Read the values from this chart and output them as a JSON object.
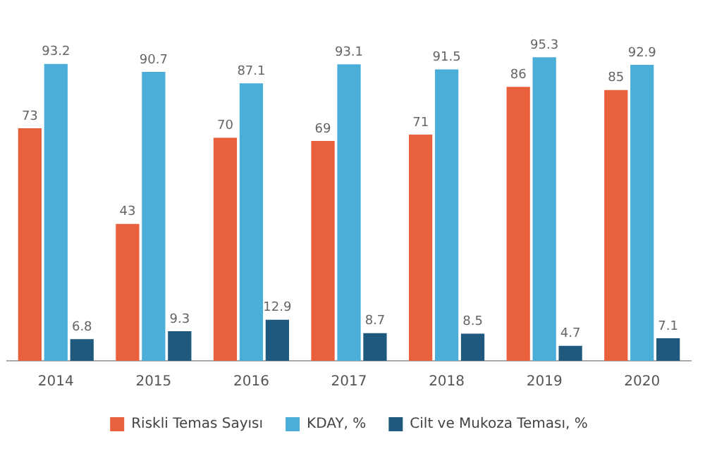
{
  "chart_data": {
    "type": "bar",
    "categories": [
      "2014",
      "2015",
      "2016",
      "2017",
      "2018",
      "2019",
      "2020"
    ],
    "series": [
      {
        "name": "Riskli Temas Sayısı",
        "color": "#e8603c",
        "values": [
          73,
          43,
          70,
          69,
          71,
          86,
          85
        ]
      },
      {
        "name": "KDAY, %",
        "color": "#4aaed9",
        "values": [
          93.2,
          90.7,
          87.1,
          93.1,
          91.5,
          95.3,
          92.9
        ]
      },
      {
        "name": "Cilt ve Mukoza Teması, %",
        "color": "#1f5a7e",
        "values": [
          6.8,
          9.3,
          12.9,
          8.7,
          8.5,
          4.7,
          7.1
        ]
      }
    ],
    "data_labels": true,
    "legend": "bottom",
    "grid": false
  }
}
